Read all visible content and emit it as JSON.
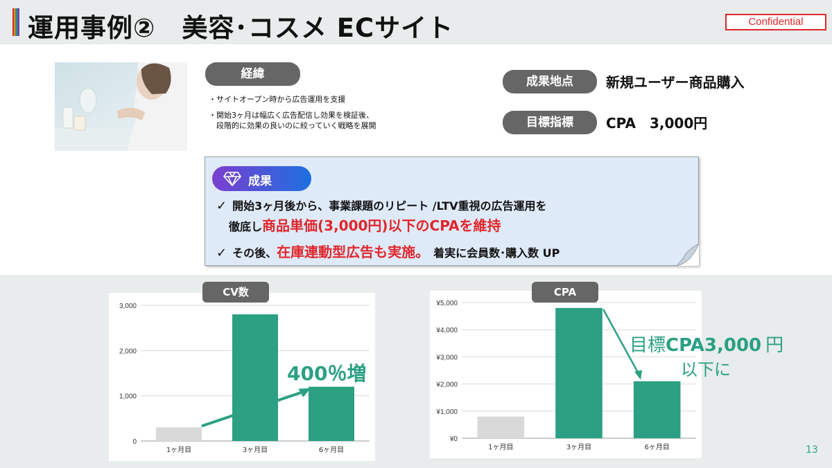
{
  "title": "運用事例②　美容･コスメ ECサイト",
  "confidential_label": "Confidential",
  "background": {
    "label": "経緯",
    "lines": [
      "・サイトオープン時から広告運用を支援",
      "・開始3ヶ月は幅広く広告配信し効果を検証後、",
      "　段階的に効果の良いのに絞っていく戦略を展開"
    ]
  },
  "kpi": [
    {
      "label": "成果地点",
      "value": "新規ユーザー商品購入"
    },
    {
      "label": "目標指標",
      "value": "CPA　3,000円"
    }
  ],
  "results": {
    "label": "成果",
    "line1_check": "✓",
    "line1": "開始3ヶ月後から、事業課題のリピート /LTV重視の広告運用を",
    "line2_pre": "徹底し",
    "line2_red": "商品単価(3,000円)以下のCPAを維持",
    "line3_check": "✓",
    "line3_pre": "その後、",
    "line3_red": "在庫連動型広告も実施。",
    "line3_post": "着実に会員数･購入数 UP"
  },
  "chart_data": [
    {
      "type": "bar",
      "title": "CV数",
      "categories": [
        "1ヶ月目",
        "3ヶ月目",
        "6ヶ月目"
      ],
      "values": [
        300,
        2800,
        1200
      ],
      "ylim": [
        0,
        3000
      ],
      "yticks": [
        "0",
        "1,000",
        "2,000",
        "3,000"
      ],
      "annotation": "400％増",
      "colors": [
        "#d9d9d9",
        "#2ba083",
        "#2ba083"
      ]
    },
    {
      "type": "bar",
      "title": "CPA",
      "categories": [
        "1ヶ月目",
        "3ヶ月目",
        "6ヶ月目"
      ],
      "values": [
        800,
        4800,
        2100
      ],
      "ylim": [
        0,
        5000
      ],
      "yticks": [
        "¥0",
        "¥1,000",
        "¥2,000",
        "¥3,000",
        "¥4,000",
        "¥5,000"
      ],
      "annotation_line1a": "目標",
      "annotation_line1b": "CPA3,000",
      "annotation_line1c": "円",
      "annotation_line2": "以下に",
      "colors": [
        "#d9d9d9",
        "#2ba083",
        "#2ba083"
      ]
    }
  ],
  "page_number": "13",
  "colors": {
    "accent": "#2ba083",
    "red": "#e0262b",
    "pill": "#666666",
    "results_bg": "#dfeaf8"
  }
}
